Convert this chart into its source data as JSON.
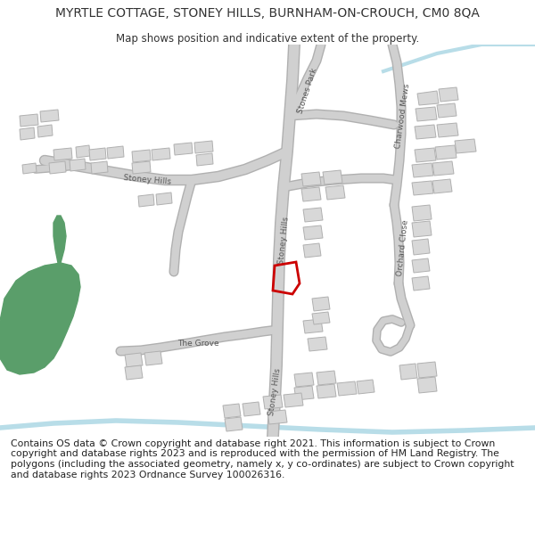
{
  "title": "MYRTLE COTTAGE, STONEY HILLS, BURNHAM-ON-CROUCH, CM0 8QA",
  "subtitle": "Map shows position and indicative extent of the property.",
  "footer": "Contains OS data © Crown copyright and database right 2021. This information is subject to Crown copyright and database rights 2023 and is reproduced with the permission of HM Land Registry. The polygons (including the associated geometry, namely x, y co-ordinates) are subject to Crown copyright and database rights 2023 Ordnance Survey 100026316.",
  "bg_color": "#ffffff",
  "road_color": "#cccccc",
  "road_edge": "#aaaaaa",
  "building_color": "#d8d8d8",
  "building_edge": "#b0b0b0",
  "green_color": "#5a9e6a",
  "red_color": "#cc0000",
  "water_color": "#b8dde8",
  "text_color": "#333333",
  "label_color": "#555555",
  "title_fontsize": 10,
  "subtitle_fontsize": 8.5,
  "footer_fontsize": 7.8,
  "label_fontsize": 6.5
}
